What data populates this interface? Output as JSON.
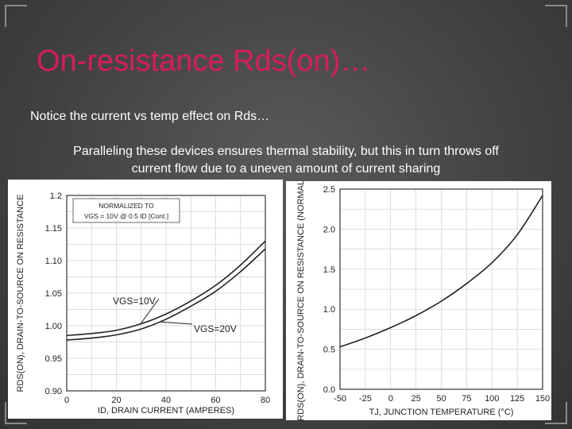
{
  "slide": {
    "title": "On-resistance Rds(on)…",
    "note": "Notice the current vs temp effect on Rds…",
    "paragraph_line1": "Paralleling these devices ensures thermal stability, but this in turn throws off",
    "paragraph_line2": "current flow due to a uneven amount of current sharing"
  },
  "chart_data": [
    {
      "type": "line",
      "ylabel": "RDS(ON), DRAIN-TO-SOURCE ON RESISTANCE",
      "xlabel": "ID, DRAIN CURRENT (AMPERES)",
      "xlim": [
        0,
        80
      ],
      "ylim": [
        0.9,
        1.2
      ],
      "xticks": [
        "0",
        "20",
        "40",
        "60",
        "80"
      ],
      "yticks": [
        "1.2",
        "1.15",
        "1.10",
        "1.05",
        "1.00",
        "0.95",
        "0.90"
      ],
      "legend_box": [
        "NORMALIZED TO",
        "VGS = 10V @ 0.5 ID [Cont.]"
      ],
      "grid": true,
      "series": [
        {
          "name": "VGS=10V",
          "x": [
            0,
            10,
            20,
            30,
            40,
            50,
            60,
            70,
            80
          ],
          "y": [
            0.985,
            0.988,
            0.993,
            1.003,
            1.018,
            1.038,
            1.062,
            1.093,
            1.13
          ]
        },
        {
          "name": "VGS=20V",
          "x": [
            0,
            10,
            20,
            30,
            40,
            50,
            60,
            70,
            80
          ],
          "y": [
            0.978,
            0.981,
            0.986,
            0.995,
            1.01,
            1.03,
            1.053,
            1.083,
            1.118
          ]
        }
      ]
    },
    {
      "type": "line",
      "ylabel": "RDS(ON), DRAIN-TO-SOURCE ON RESISTANCE (NORMALIZED)",
      "xlabel": "TJ, JUNCTION TEMPERATURE (°C)",
      "xlim": [
        -50,
        150
      ],
      "ylim": [
        0,
        2.5
      ],
      "xticks": [
        "-50",
        "-25",
        "0",
        "25",
        "50",
        "75",
        "100",
        "125",
        "150"
      ],
      "yticks": [
        "2.5",
        "2.0",
        "1.5",
        "1.0",
        "0.5",
        "0.0"
      ],
      "grid": true,
      "series": [
        {
          "x": [
            -50,
            -25,
            0,
            25,
            50,
            75,
            100,
            125,
            150
          ],
          "y": [
            0.53,
            0.64,
            0.77,
            0.92,
            1.1,
            1.32,
            1.58,
            1.93,
            2.42
          ]
        }
      ]
    }
  ]
}
